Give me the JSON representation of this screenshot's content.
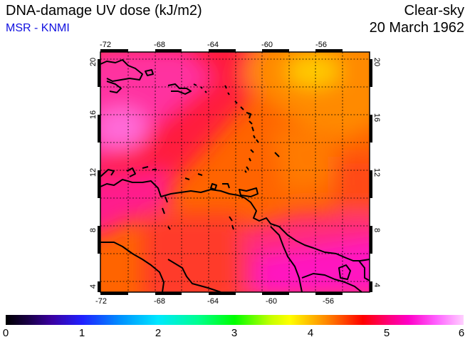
{
  "header": {
    "title": "DNA-damage UV dose (kJ/m2)",
    "source": "MSR - KNMI",
    "sky": "Clear-sky",
    "date": "20 March 1962"
  },
  "map": {
    "lon_ticks": [
      "-72",
      "-68",
      "-64",
      "-60",
      "-56"
    ],
    "lat_ticks": [
      "20",
      "16",
      "12",
      "8",
      "4"
    ]
  },
  "colorbar": {
    "labels": [
      "0",
      "1",
      "2",
      "3",
      "4",
      "5",
      "6"
    ]
  }
}
